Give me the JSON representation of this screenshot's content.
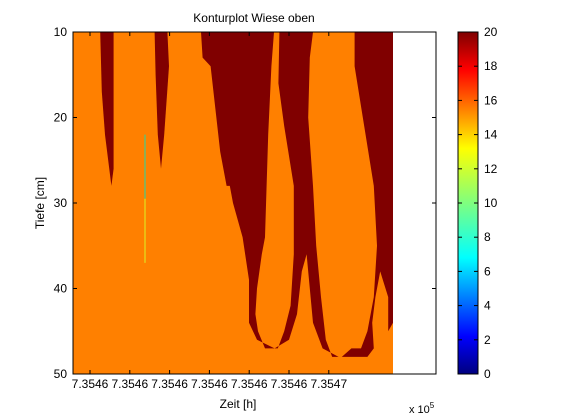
{
  "chart_data": {
    "type": "heatmap",
    "title": "Konturplot Wiese oben",
    "xlabel": "Zeit [h]",
    "ylabel": "Tiefe [cm]",
    "x_exponent_label": "x 10",
    "x_exponent": "5",
    "x_tick_labels": [
      "7.3546",
      "7.3546",
      "7.3546",
      "7.3546",
      "7.3546",
      "7.3546",
      "7.3547"
    ],
    "y_tick_labels": [
      "10",
      "20",
      "30",
      "40",
      "50"
    ],
    "yticks": [
      10,
      20,
      30,
      40,
      50
    ],
    "ylim": [
      10,
      50
    ],
    "y_reversed": true,
    "colorbar": {
      "range": [
        0,
        20
      ],
      "tick_labels": [
        "0",
        "2",
        "4",
        "6",
        "8",
        "10",
        "12",
        "14",
        "16",
        "18",
        "20"
      ],
      "ticks": [
        0,
        2,
        4,
        6,
        8,
        10,
        12,
        14,
        16,
        18,
        20
      ],
      "colormap": "jet"
    },
    "background_value": 15,
    "foreground_value": 20,
    "high_value_regions": [
      {
        "points": [
          [
            0.085,
            10
          ],
          [
            0.127,
            10
          ],
          [
            0.127,
            26
          ],
          [
            0.12,
            28
          ],
          [
            0.1,
            22
          ],
          [
            0.09,
            17
          ]
        ]
      },
      {
        "points": [
          [
            0.255,
            10
          ],
          [
            0.295,
            10
          ],
          [
            0.3,
            14
          ],
          [
            0.285,
            22
          ],
          [
            0.275,
            26
          ],
          [
            0.265,
            22
          ],
          [
            0.258,
            15
          ]
        ]
      },
      {
        "points": [
          [
            0.4,
            10
          ],
          [
            0.628,
            10
          ],
          [
            0.62,
            14
          ],
          [
            0.61,
            22
          ],
          [
            0.605,
            28
          ],
          [
            0.6,
            34
          ],
          [
            0.59,
            36
          ],
          [
            0.575,
            40
          ],
          [
            0.57,
            43
          ],
          [
            0.578,
            45
          ],
          [
            0.6,
            47
          ],
          [
            0.64,
            47
          ],
          [
            0.66,
            45
          ],
          [
            0.68,
            42
          ],
          [
            0.69,
            36
          ],
          [
            0.69,
            28
          ],
          [
            0.66,
            21
          ],
          [
            0.642,
            16
          ],
          [
            0.645,
            10
          ],
          [
            0.75,
            10
          ],
          [
            0.74,
            13
          ],
          [
            0.735,
            20
          ],
          [
            0.75,
            28
          ],
          [
            0.76,
            35
          ],
          [
            0.775,
            41
          ],
          [
            0.79,
            46
          ],
          [
            0.81,
            48
          ],
          [
            0.84,
            48
          ],
          [
            0.87,
            47
          ],
          [
            0.9,
            47
          ],
          [
            0.92,
            45
          ],
          [
            0.94,
            41
          ],
          [
            0.95,
            35
          ],
          [
            0.94,
            28
          ],
          [
            0.91,
            21
          ],
          [
            0.88,
            14
          ],
          [
            0.88,
            10
          ],
          [
            1.0,
            10
          ],
          [
            1.0,
            44
          ],
          [
            0.985,
            45
          ],
          [
            0.985,
            41
          ],
          [
            0.96,
            38
          ],
          [
            0.945,
            41
          ],
          [
            0.935,
            44
          ],
          [
            0.94,
            47
          ],
          [
            0.92,
            48
          ],
          [
            0.83,
            48
          ],
          [
            0.78,
            47
          ],
          [
            0.75,
            44
          ],
          [
            0.74,
            40
          ],
          [
            0.73,
            36
          ],
          [
            0.715,
            38
          ],
          [
            0.7,
            43
          ],
          [
            0.675,
            46
          ],
          [
            0.63,
            47
          ],
          [
            0.575,
            46
          ],
          [
            0.55,
            44
          ],
          [
            0.55,
            39
          ],
          [
            0.53,
            34
          ],
          [
            0.5,
            30
          ],
          [
            0.49,
            28
          ],
          [
            0.48,
            28
          ],
          [
            0.46,
            24
          ],
          [
            0.445,
            19
          ],
          [
            0.43,
            14
          ],
          [
            0.405,
            13
          ]
        ]
      }
    ],
    "thin_line_range": [
      22,
      37
    ]
  }
}
